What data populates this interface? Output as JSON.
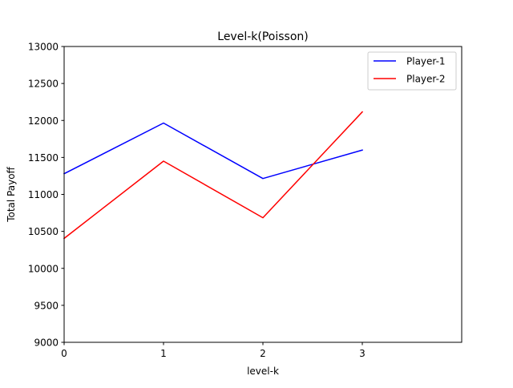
{
  "chart_data": {
    "type": "line",
    "title": "Level-k(Poisson)",
    "xlabel": "level-k",
    "ylabel": "Total Payoff",
    "xlim": [
      0,
      4
    ],
    "ylim": [
      9000,
      13000
    ],
    "x_ticks": [
      0,
      1,
      2,
      3
    ],
    "y_ticks": [
      9000,
      9500,
      10000,
      10500,
      11000,
      11500,
      12000,
      12500,
      13000
    ],
    "grid": false,
    "legend_position": "top-right",
    "series": [
      {
        "name": "Player-1",
        "color": "#0000ff",
        "x": [
          0,
          1,
          2,
          3
        ],
        "y": [
          11280,
          11965,
          11215,
          11600
        ]
      },
      {
        "name": "Player-2",
        "color": "#ff0000",
        "x": [
          0,
          1,
          2,
          3
        ],
        "y": [
          10405,
          11450,
          10685,
          12115
        ]
      }
    ]
  }
}
